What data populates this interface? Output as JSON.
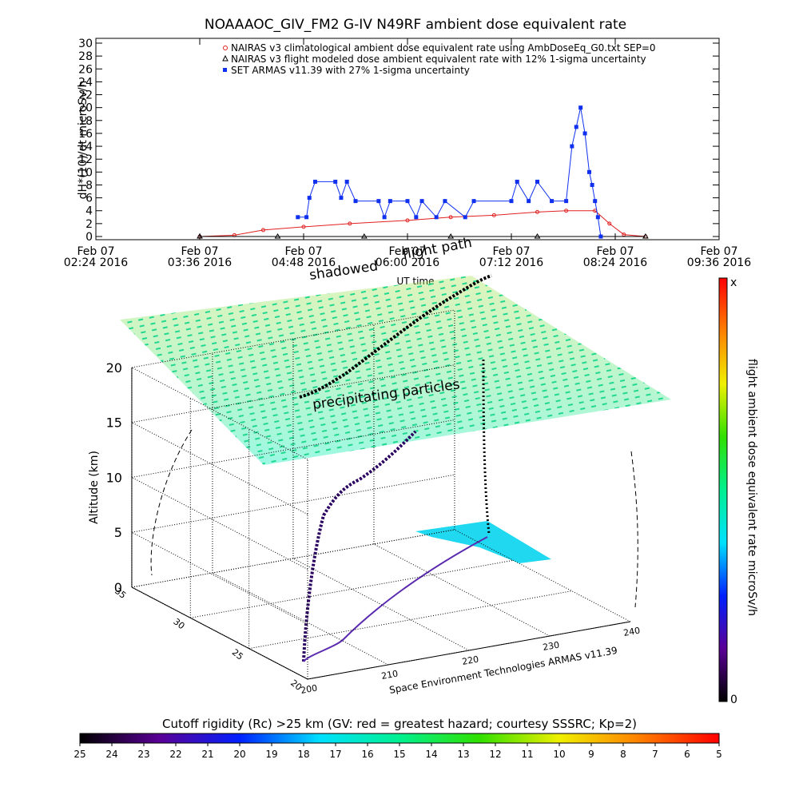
{
  "chart_data": [
    {
      "type": "line",
      "title": "NOAAAOC_GIV_FM2 G-IV    N49RF   ambient dose equivalent rate",
      "y_label": "dH*(10)/dt microSv/h",
      "x_label": "UT time",
      "xlim": [
        "2016-02-07T02:24",
        "2016-02-07T09:36"
      ],
      "xticks": [
        {
          "value": "2016-02-07T02:24",
          "label": [
            "Feb 07",
            "02:24 2016"
          ]
        },
        {
          "value": "2016-02-07T03:36",
          "label": [
            "Feb 07",
            "03:36 2016"
          ]
        },
        {
          "value": "2016-02-07T04:48",
          "label": [
            "Feb 07",
            "04:48 2016"
          ]
        },
        {
          "value": "2016-02-07T06:00",
          "label": [
            "Feb 07",
            "06:00 2016"
          ]
        },
        {
          "value": "2016-02-07T07:12",
          "label": [
            "Feb 07",
            "07:12 2016"
          ]
        },
        {
          "value": "2016-02-07T08:24",
          "label": [
            "Feb 07",
            "08:24 2016"
          ]
        },
        {
          "value": "2016-02-07T09:36",
          "label": [
            "Feb 07",
            "09:36 2016"
          ]
        }
      ],
      "ylim": [
        0,
        30
      ],
      "yticks": [
        0,
        2,
        4,
        6,
        8,
        10,
        12,
        14,
        16,
        18,
        20,
        22,
        24,
        26,
        28,
        30
      ],
      "legend": "top-right",
      "series": [
        {
          "name": "NAIRAS v3 climatological ambient dose equivalent rate using AmbDoseEq_G0.txt SEP=0",
          "color": "#e02020",
          "marker": "circle",
          "x": [
            "2016-02-07T03:36",
            "2016-02-07T04:00",
            "2016-02-07T04:20",
            "2016-02-07T04:48",
            "2016-02-07T05:20",
            "2016-02-07T06:00",
            "2016-02-07T06:30",
            "2016-02-07T07:00",
            "2016-02-07T07:30",
            "2016-02-07T07:50",
            "2016-02-07T08:10",
            "2016-02-07T08:20",
            "2016-02-07T08:30",
            "2016-02-07T08:45"
          ],
          "values": [
            0,
            0.2,
            1,
            1.5,
            2,
            2.5,
            3,
            3.3,
            3.8,
            4,
            4,
            2,
            0.3,
            0
          ]
        },
        {
          "name": "NAIRAS v3 flight modeled dose ambient equivalent rate with 12% 1-sigma uncertainty",
          "color": "#000000",
          "marker": "triangle",
          "x": [
            "2016-02-07T03:36",
            "2016-02-07T04:30",
            "2016-02-07T05:30",
            "2016-02-07T06:30",
            "2016-02-07T07:30",
            "2016-02-07T08:45"
          ],
          "values": [
            0,
            0,
            0,
            0,
            0,
            0
          ]
        },
        {
          "name": "SET ARMAS v11.39 with 27% 1-sigma uncertainty",
          "color": "#1030f0",
          "marker": "square",
          "x": [
            "2016-02-07T04:44",
            "2016-02-07T04:50",
            "2016-02-07T04:52",
            "2016-02-07T04:56",
            "2016-02-07T05:10",
            "2016-02-07T05:14",
            "2016-02-07T05:18",
            "2016-02-07T05:24",
            "2016-02-07T05:40",
            "2016-02-07T05:44",
            "2016-02-07T05:48",
            "2016-02-07T06:00",
            "2016-02-07T06:06",
            "2016-02-07T06:10",
            "2016-02-07T06:20",
            "2016-02-07T06:26",
            "2016-02-07T06:40",
            "2016-02-07T06:46",
            "2016-02-07T07:12",
            "2016-02-07T07:16",
            "2016-02-07T07:24",
            "2016-02-07T07:30",
            "2016-02-07T07:40",
            "2016-02-07T07:50",
            "2016-02-07T07:54",
            "2016-02-07T07:57",
            "2016-02-07T08:00",
            "2016-02-07T08:03",
            "2016-02-07T08:06",
            "2016-02-07T08:08",
            "2016-02-07T08:10",
            "2016-02-07T08:12",
            "2016-02-07T08:14"
          ],
          "values": [
            3,
            3,
            6,
            8.5,
            8.5,
            6,
            8.5,
            5.5,
            5.5,
            3,
            5.5,
            5.5,
            3,
            5.5,
            3,
            5.5,
            3,
            5.5,
            5.5,
            8.5,
            5.5,
            8.5,
            5.5,
            5.5,
            14,
            17,
            20,
            16,
            10,
            8,
            5.5,
            3,
            0
          ]
        }
      ]
    },
    {
      "type": "scatter3d",
      "z_label": "Altitude (km)",
      "zlim": [
        0,
        20
      ],
      "zticks": [
        0,
        5,
        10,
        15,
        20
      ],
      "xlim": [
        200,
        240
      ],
      "xticks": [
        200,
        210,
        220,
        230,
        240
      ],
      "ylim": [
        20,
        35
      ],
      "yticks": [
        20,
        25,
        30,
        35
      ],
      "annotations": [
        "shadowed",
        "flight path",
        "precipitating particles"
      ],
      "credit": "Space Environment Technologies ARMAS v11.39"
    },
    {
      "type": "colorbar",
      "label": "flight ambient dose equivalent rate microSv/h",
      "ticks": [
        0
      ],
      "max_label": "x",
      "colors": [
        "#000000",
        "#5a0096",
        "#0020ff",
        "#00e0ff",
        "#00f090",
        "#30e000",
        "#f0f000",
        "#ff8000",
        "#ff0000"
      ]
    },
    {
      "type": "colorbar",
      "title": "Cutoff rigidity (Rc) >25 km (GV: red = greatest hazard; courtesy SSSRC; Kp=2)",
      "clim": [
        25,
        5
      ],
      "ticks": [
        25,
        24,
        23,
        22,
        21,
        20,
        19,
        18,
        17,
        16,
        15,
        14,
        13,
        12,
        11,
        10,
        9,
        8,
        7,
        6,
        5
      ],
      "colors": [
        "#000000",
        "#5a0096",
        "#0020ff",
        "#00e0ff",
        "#00f090",
        "#30e000",
        "#f0f000",
        "#ff8000",
        "#ff0000"
      ]
    }
  ]
}
